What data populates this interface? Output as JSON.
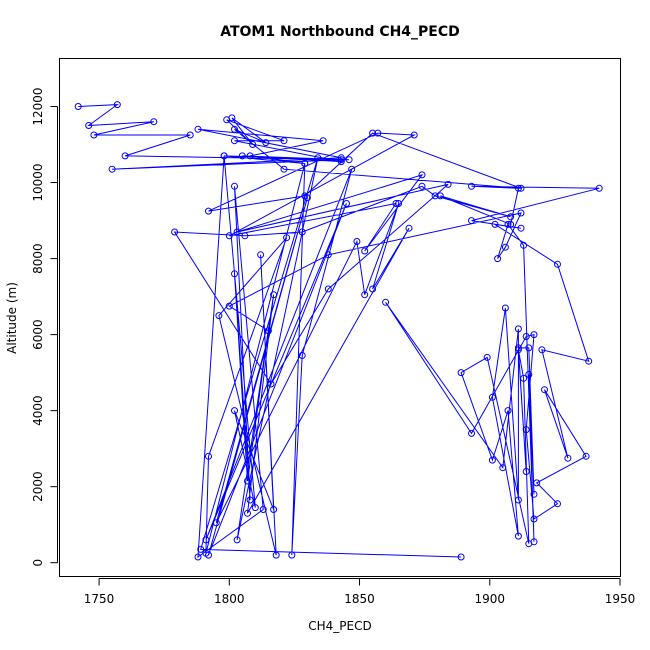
{
  "chart_data": {
    "type": "line",
    "title": "ATOM1 Northbound CH4_PECD",
    "xlabel": "CH4_PECD",
    "ylabel": "Altitude (m)",
    "xlim": [
      1735,
      1950
    ],
    "ylim": [
      -350,
      13250
    ],
    "xticks": [
      1750,
      1800,
      1850,
      1900,
      1950
    ],
    "yticks": [
      0,
      2000,
      4000,
      6000,
      8000,
      10000,
      12000
    ],
    "grid": false,
    "color": "#0000ff",
    "marker": "open-circle",
    "series": [
      {
        "points": [
          [
            1742,
            12000
          ],
          [
            1757,
            12050
          ],
          [
            1746,
            11500
          ],
          [
            1771,
            11600
          ],
          [
            1748,
            11250
          ],
          [
            1785,
            11250
          ],
          [
            1760,
            10700
          ],
          [
            1843,
            10600
          ],
          [
            1755,
            10350
          ],
          [
            1843,
            10650
          ],
          [
            1788,
            11400
          ],
          [
            1836,
            11100
          ],
          [
            1808,
            10700
          ],
          [
            1829,
            10500
          ],
          [
            1798,
            10700
          ],
          [
            1846,
            10600
          ],
          [
            1805,
            10700
          ],
          [
            1843,
            10550
          ],
          [
            1802,
            11100
          ],
          [
            1821,
            11100
          ],
          [
            1799,
            11650
          ],
          [
            1809,
            11000
          ],
          [
            1801,
            11700
          ],
          [
            1814,
            11050
          ],
          [
            1802,
            11400
          ],
          [
            1821,
            10350
          ],
          [
            1912,
            9850
          ],
          [
            1855,
            11300
          ],
          [
            1829,
            9650
          ],
          [
            1792,
            9250
          ],
          [
            1857,
            11300
          ],
          [
            1871,
            11250
          ],
          [
            1800,
            8600
          ],
          [
            1864,
            9450
          ],
          [
            1852,
            8200
          ],
          [
            1874,
            10200
          ],
          [
            1803,
            8700
          ],
          [
            1884,
            9950
          ],
          [
            1838,
            7200
          ],
          [
            1816,
            4700
          ],
          [
            1779,
            8700
          ],
          [
            1806,
            8600
          ],
          [
            1828,
            8700
          ],
          [
            1874,
            9900
          ],
          [
            1879,
            9650
          ],
          [
            1908,
            9100
          ],
          [
            1881,
            9650
          ],
          [
            1908,
            8900
          ],
          [
            1911,
            9850
          ],
          [
            1893,
            9900
          ],
          [
            1942,
            9850
          ],
          [
            1893,
            9000
          ],
          [
            1912,
            8800
          ],
          [
            1902,
            8900
          ],
          [
            1926,
            7850
          ],
          [
            1938,
            5300
          ],
          [
            1920,
            5600
          ],
          [
            1930,
            2750
          ],
          [
            1921,
            4550
          ],
          [
            1937,
            2800
          ],
          [
            1918,
            2100
          ],
          [
            1926,
            1550
          ],
          [
            1917,
            1150
          ],
          [
            1914,
            3500
          ],
          [
            1917,
            6000
          ],
          [
            1914,
            5950
          ],
          [
            1893,
            3400
          ],
          [
            1860,
            6850
          ],
          [
            1905,
            2500
          ],
          [
            1911,
            6150
          ],
          [
            1911,
            1650
          ],
          [
            1906,
            6700
          ],
          [
            1901,
            4350
          ],
          [
            1911,
            700
          ],
          [
            1907,
            4000
          ],
          [
            1901,
            2700
          ],
          [
            1889,
            5000
          ],
          [
            1899,
            5400
          ],
          [
            1915,
            500
          ],
          [
            1913,
            4850
          ],
          [
            1911,
            5600
          ],
          [
            1914,
            2400
          ],
          [
            1911,
            5650
          ],
          [
            1915,
            5650
          ],
          [
            1917,
            1800
          ],
          [
            1915,
            4950
          ],
          [
            1917,
            550
          ],
          [
            1913,
            8350
          ],
          [
            1907,
            8900
          ],
          [
            1903,
            8000
          ],
          [
            1906,
            8300
          ],
          [
            1912,
            9200
          ],
          [
            1838,
            8100
          ],
          [
            1800,
            6750
          ],
          [
            1815,
            6100
          ],
          [
            1807,
            2150
          ],
          [
            1802,
            7600
          ],
          [
            1808,
            1650
          ],
          [
            1802,
            9900
          ],
          [
            1813,
            1400
          ],
          [
            1788,
            150
          ],
          [
            1798,
            10700
          ],
          [
            1810,
            1450
          ],
          [
            1802,
            4000
          ],
          [
            1817,
            1400
          ],
          [
            1812,
            8100
          ],
          [
            1818,
            200
          ],
          [
            1796,
            6500
          ],
          [
            1822,
            8550
          ],
          [
            1792,
            2800
          ],
          [
            1791,
            250
          ],
          [
            1829,
            10500
          ],
          [
            1824,
            200
          ],
          [
            1828,
            5450
          ],
          [
            1847,
            10350
          ],
          [
            1791,
            600
          ],
          [
            1845,
            9450
          ],
          [
            1792,
            200
          ],
          [
            1830,
            9600
          ],
          [
            1795,
            1050
          ],
          [
            1849,
            8450
          ],
          [
            1852,
            7050
          ],
          [
            1865,
            9450
          ],
          [
            1855,
            7200
          ],
          [
            1869,
            8800
          ],
          [
            1807,
            1300
          ],
          [
            1817,
            7050
          ],
          [
            1803,
            600
          ],
          [
            1834,
            10650
          ],
          [
            1789,
            350
          ],
          [
            1889,
            150
          ]
        ]
      }
    ]
  }
}
